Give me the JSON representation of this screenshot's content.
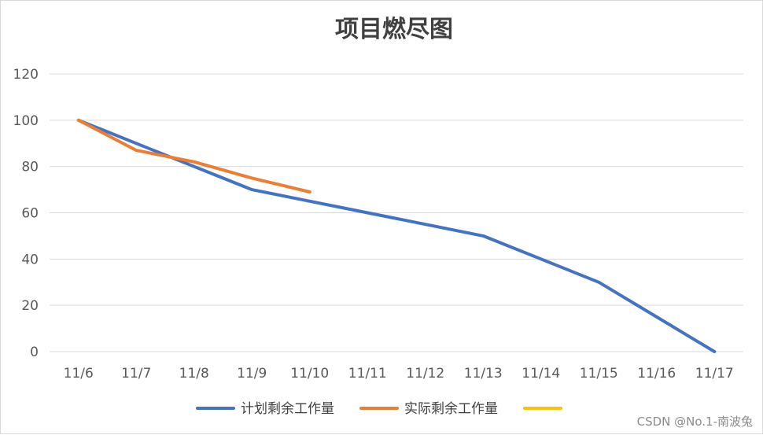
{
  "chart_data": {
    "type": "line",
    "title": "项目燃尽图",
    "xlabel": "",
    "ylabel": "",
    "categories": [
      "11/6",
      "11/7",
      "11/8",
      "11/9",
      "11/10",
      "11/11",
      "11/12",
      "11/13",
      "11/14",
      "11/15",
      "11/16",
      "11/17"
    ],
    "ylim": [
      0,
      120
    ],
    "yticks": [
      0,
      20,
      40,
      60,
      80,
      100,
      120
    ],
    "grid": true,
    "legend_position": "bottom",
    "series": [
      {
        "name": "计划剩余工作量",
        "color": "#4472C4",
        "values": [
          100,
          90,
          80,
          70,
          65,
          60,
          55,
          50,
          40,
          30,
          15,
          0
        ]
      },
      {
        "name": "实际剩余工作量",
        "color": "#ED7D31",
        "values": [
          100,
          87,
          82,
          75,
          69,
          null,
          null,
          null,
          null,
          null,
          null,
          null
        ]
      },
      {
        "name": "",
        "color": "#FFC000",
        "values": [
          null,
          null,
          null,
          null,
          null,
          null,
          null,
          null,
          null,
          null,
          null,
          null
        ]
      }
    ]
  },
  "watermark": "CSDN @No.1-南波兔"
}
